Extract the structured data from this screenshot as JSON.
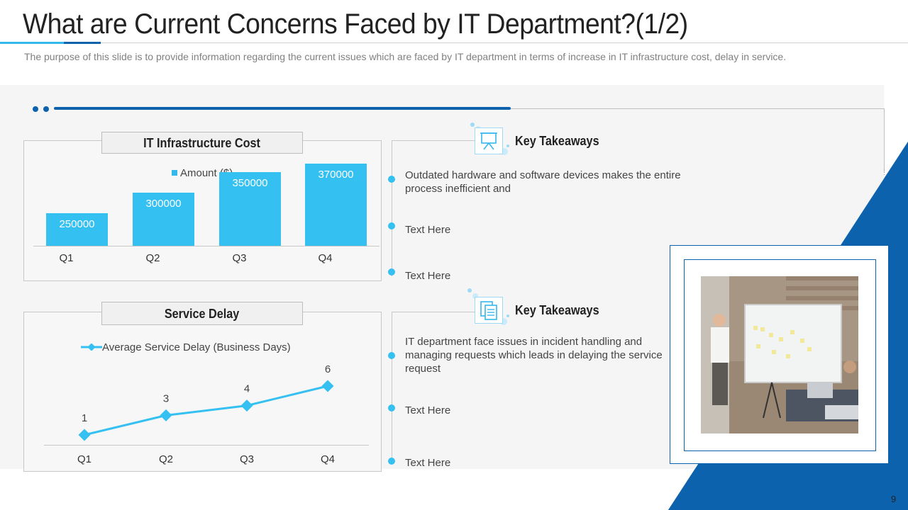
{
  "slide": {
    "title": "What are Current Concerns Faced by IT Department?(1/2)",
    "subtitle": "The purpose of this slide is to provide information regarding the current issues which are faced by IT department in terms of increase in IT infrastructure cost, delay in service.",
    "page_number": "9"
  },
  "colors": {
    "accent_light": "#35c0f2",
    "accent_dark": "#0d62ae",
    "panel_bg": "#f5f5f5"
  },
  "cost_chart": {
    "label": "IT Infrastructure Cost",
    "legend": "Amount ($)",
    "value_labels": [
      "250000",
      "300000",
      "350000",
      "370000"
    ],
    "tick_labels": [
      "Q1",
      "Q2",
      "Q3",
      "Q4"
    ]
  },
  "delay_chart": {
    "label": "Service Delay",
    "legend": "Average Service Delay (Business Days)",
    "value_labels": [
      "1",
      "3",
      "4",
      "6"
    ],
    "tick_labels": [
      "Q1",
      "Q2",
      "Q3",
      "Q4"
    ]
  },
  "chart_data": [
    {
      "type": "bar",
      "title": "IT Infrastructure Cost",
      "categories": [
        "Q1",
        "Q2",
        "Q3",
        "Q4"
      ],
      "series": [
        {
          "name": "Amount ($)",
          "values": [
            250000,
            300000,
            350000,
            370000
          ]
        }
      ],
      "ylim": [
        0,
        400000
      ],
      "legend": "top",
      "grid": false
    },
    {
      "type": "line",
      "title": "Service Delay",
      "categories": [
        "Q1",
        "Q2",
        "Q3",
        "Q4"
      ],
      "series": [
        {
          "name": "Average Service Delay (Business Days)",
          "values": [
            1,
            3,
            4,
            6
          ]
        }
      ],
      "ylim": [
        0,
        7
      ],
      "legend": "top",
      "grid": false
    }
  ],
  "takeaways": [
    {
      "title": "Key Takeaways",
      "icon": "presentation-board-icon",
      "items": [
        "Outdated hardware and software devices makes the entire process inefficient and",
        "Text Here",
        "Text Here"
      ]
    },
    {
      "title": "Key Takeaways",
      "icon": "documents-icon",
      "items": [
        "IT department face issues in incident handling and managing requests which leads in delaying the service request",
        "Text Here",
        "Text Here"
      ]
    }
  ],
  "photo": {
    "icon": "team-meeting-whiteboard-photo"
  }
}
